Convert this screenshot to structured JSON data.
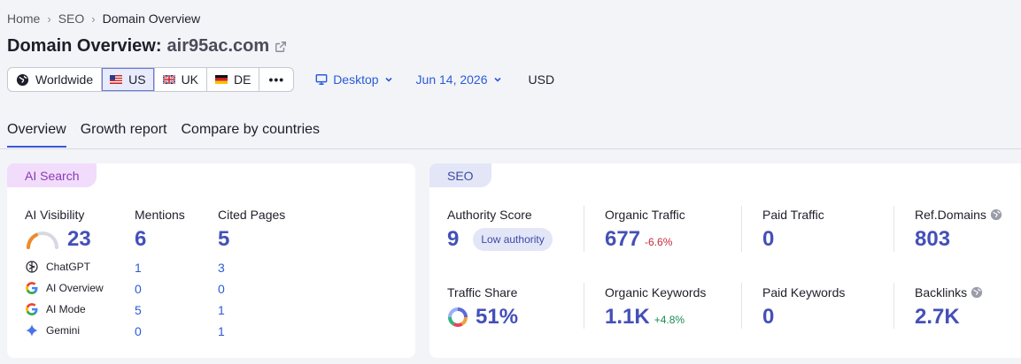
{
  "breadcrumb": [
    "Home",
    "SEO",
    "Domain Overview"
  ],
  "header": {
    "title": "Domain Overview:",
    "domain": "air95ac.com"
  },
  "databases": {
    "worldwide": "Worldwide",
    "us": "US",
    "uk": "UK",
    "de": "DE",
    "more": "•••"
  },
  "filters": {
    "device": "Desktop",
    "date": "Jun 14, 2026",
    "currency": "USD"
  },
  "tabs": [
    "Overview",
    "Growth report",
    "Compare by countries"
  ],
  "ai_card": {
    "tag": "AI Search",
    "visibility_label": "AI Visibility",
    "visibility_value": "23",
    "mentions_label": "Mentions",
    "mentions_value": "6",
    "cited_label": "Cited Pages",
    "cited_value": "5",
    "rows": [
      {
        "name": "ChatGPT",
        "mentions": "1",
        "cited": "3"
      },
      {
        "name": "AI Overview",
        "mentions": "0",
        "cited": "0"
      },
      {
        "name": "AI Mode",
        "mentions": "5",
        "cited": "1"
      },
      {
        "name": "Gemini",
        "mentions": "0",
        "cited": "1"
      }
    ]
  },
  "seo_card": {
    "tag": "SEO",
    "authority_label": "Authority Score",
    "authority_value": "9",
    "authority_badge": "Low authority",
    "organic_traffic_label": "Organic Traffic",
    "organic_traffic_value": "677",
    "organic_traffic_delta": "-6.6%",
    "paid_traffic_label": "Paid Traffic",
    "paid_traffic_value": "0",
    "ref_domains_label": "Ref.Domains",
    "ref_domains_value": "803",
    "traffic_share_label": "Traffic Share",
    "traffic_share_value": "51%",
    "organic_keywords_label": "Organic Keywords",
    "organic_keywords_value": "1.1K",
    "organic_keywords_delta": "+4.8%",
    "paid_keywords_label": "Paid Keywords",
    "paid_keywords_value": "0",
    "backlinks_label": "Backlinks",
    "backlinks_value": "2.7K"
  },
  "colors": {
    "accent": "#4450b8",
    "link": "#2a5bd7",
    "negative": "#c62a3f",
    "positive": "#1b8a55"
  }
}
